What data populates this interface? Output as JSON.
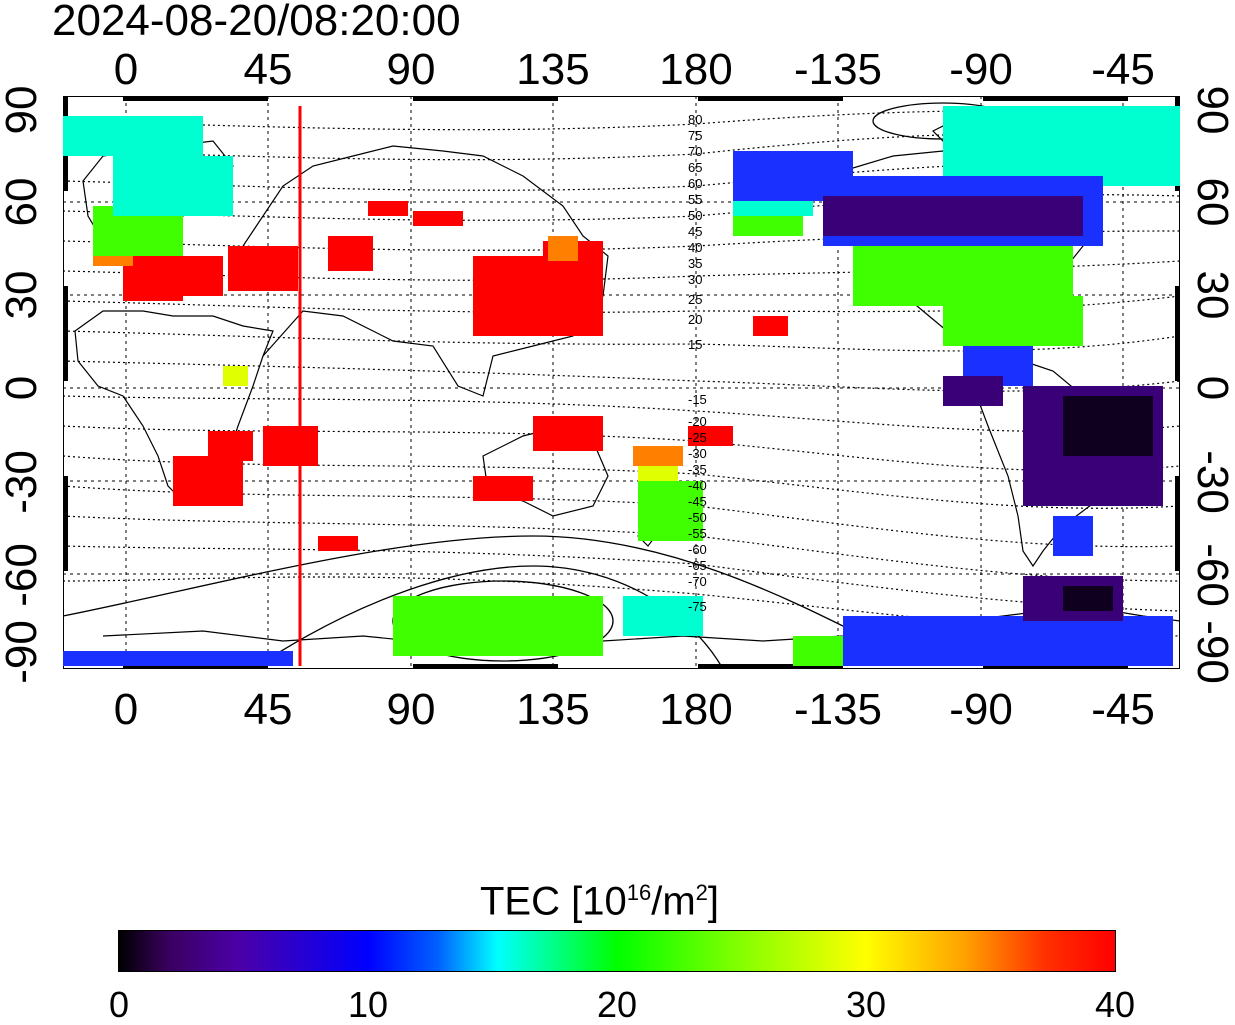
{
  "title": "2024-08-20/08:20:00",
  "axes": {
    "x_tick_labels": [
      "0",
      "45",
      "90",
      "135",
      "180",
      "-135",
      "-90",
      "-45"
    ],
    "y_tick_labels": [
      "90",
      "60",
      "30",
      "0",
      "-30",
      "-60",
      "-90"
    ]
  },
  "contour_labels": [
    "80",
    "75",
    "70",
    "65",
    "60",
    "55",
    "50",
    "45",
    "40",
    "35",
    "30",
    "25",
    "20",
    "15",
    "-15",
    "-20",
    "-25",
    "-30",
    "-35",
    "-40",
    "-45",
    "-50",
    "-55",
    "-60",
    "-65",
    "-70",
    "-75"
  ],
  "marker_line": {
    "longitude": 55,
    "color": "#ff0000"
  },
  "colorbar": {
    "title_prefix": "TEC  [10",
    "title_sup1": "16",
    "title_mid": "/m",
    "title_sup2": "2",
    "title_suffix": "]",
    "tick_labels": [
      "0",
      "10",
      "20",
      "30",
      "40"
    ],
    "range": [
      0,
      40
    ]
  },
  "colors": {
    "high": "#ff0000",
    "mid": "#00ff00",
    "low": "#0000ff",
    "zero": "#000000"
  }
}
